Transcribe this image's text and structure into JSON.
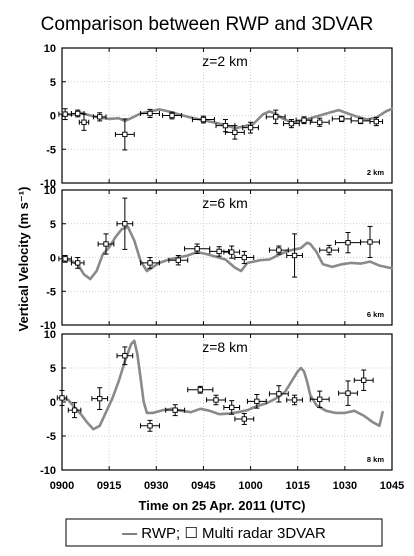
{
  "chart_data": {
    "type": "line",
    "title": "Comparison between RWP and 3DVAR",
    "xlabel": "Time on 25 Apr. 2011 (UTC)",
    "ylabel": "Vertical Velocity (m s⁻¹)",
    "xlim": [
      0,
      105
    ],
    "ylim": [
      -10,
      10
    ],
    "x_ticks": [
      0,
      15,
      30,
      45,
      60,
      75,
      90,
      105
    ],
    "x_tick_labels": [
      "0900",
      "0915",
      "0930",
      "0945",
      "1000",
      "1015",
      "1030",
      "1045"
    ],
    "y_ticks": [
      -10,
      -5,
      0,
      5,
      10
    ],
    "y_tick_labels": [
      "-10",
      "-5",
      "0",
      "5",
      "10"
    ],
    "legend_text": "— RWP; ☐ Multi radar 3DVAR",
    "legend_placement": "bottom",
    "colors": {
      "rwp_line": "#8a8a8a",
      "radar_marker": "#000000",
      "frame": "#000000",
      "grid": "#c0c0c0"
    },
    "panels": [
      {
        "label": "z=2 km",
        "corner_label": "2 km",
        "rwp": [
          [
            0,
            0.3
          ],
          [
            3,
            0.1
          ],
          [
            6,
            0.4
          ],
          [
            9,
            0.0
          ],
          [
            12,
            -0.3
          ],
          [
            15,
            -0.5
          ],
          [
            18,
            -0.4
          ],
          [
            20,
            -0.8
          ],
          [
            22,
            -0.4
          ],
          [
            25,
            0.3
          ],
          [
            28,
            0.6
          ],
          [
            31,
            0.9
          ],
          [
            34,
            0.6
          ],
          [
            37,
            0.2
          ],
          [
            40,
            -0.2
          ],
          [
            43,
            -0.5
          ],
          [
            46,
            -0.8
          ],
          [
            49,
            -1.1
          ],
          [
            52,
            -1.4
          ],
          [
            55,
            -1.9
          ],
          [
            58,
            -1.6
          ],
          [
            61,
            -1.2
          ],
          [
            64,
            0.2
          ],
          [
            66,
            0.6
          ],
          [
            68,
            0.3
          ],
          [
            70,
            -0.4
          ],
          [
            73,
            -1.0
          ],
          [
            76,
            -0.8
          ],
          [
            79,
            -0.4
          ],
          [
            82,
            0.0
          ],
          [
            85,
            0.4
          ],
          [
            88,
            0.8
          ],
          [
            91,
            0.3
          ],
          [
            94,
            -0.2
          ],
          [
            97,
            -0.6
          ],
          [
            100,
            -0.3
          ],
          [
            103,
            0.6
          ],
          [
            105,
            1.0
          ]
        ],
        "radar": [
          {
            "x": 1,
            "y": 0.2,
            "xerr": 2,
            "yerr": 0.8
          },
          {
            "x": 5,
            "y": 0.3,
            "xerr": 2,
            "yerr": 0.5
          },
          {
            "x": 7,
            "y": -1.0,
            "xerr": 1.5,
            "yerr": 1.2
          },
          {
            "x": 12,
            "y": -0.2,
            "xerr": 2,
            "yerr": 0.6
          },
          {
            "x": 20,
            "y": -2.8,
            "xerr": 3,
            "yerr": 2.3
          },
          {
            "x": 28,
            "y": 0.3,
            "xerr": 3,
            "yerr": 0.6
          },
          {
            "x": 35,
            "y": 0.0,
            "xerr": 3,
            "yerr": 0.5
          },
          {
            "x": 45,
            "y": -0.6,
            "xerr": 3.5,
            "yerr": 0.5
          },
          {
            "x": 52,
            "y": -1.5,
            "xerr": 3,
            "yerr": 0.9
          },
          {
            "x": 55,
            "y": -2.5,
            "xerr": 3,
            "yerr": 1.0
          },
          {
            "x": 60,
            "y": -1.8,
            "xerr": 2.5,
            "yerr": 0.8
          },
          {
            "x": 68,
            "y": -0.2,
            "xerr": 3,
            "yerr": 1.0
          },
          {
            "x": 73,
            "y": -1.2,
            "xerr": 2.5,
            "yerr": 0.6
          },
          {
            "x": 77,
            "y": -0.7,
            "xerr": 2.5,
            "yerr": 0.5
          },
          {
            "x": 82,
            "y": -1.0,
            "xerr": 3,
            "yerr": 0.6
          },
          {
            "x": 89,
            "y": -0.5,
            "xerr": 3,
            "yerr": 0.4
          },
          {
            "x": 95,
            "y": -0.8,
            "xerr": 3,
            "yerr": 0.4
          },
          {
            "x": 100,
            "y": -0.9,
            "xerr": 2,
            "yerr": 0.6
          }
        ]
      },
      {
        "label": "z=6 km",
        "corner_label": "6 km",
        "rwp": [
          [
            0,
            -0.2
          ],
          [
            3,
            -0.5
          ],
          [
            5,
            -1.0
          ],
          [
            7,
            -2.5
          ],
          [
            9,
            -3.2
          ],
          [
            11,
            -2.0
          ],
          [
            13,
            0.5
          ],
          [
            15,
            1.5
          ],
          [
            17,
            3.0
          ],
          [
            19,
            4.2
          ],
          [
            21,
            4.5
          ],
          [
            23,
            2.5
          ],
          [
            25,
            -0.5
          ],
          [
            27,
            -2.0
          ],
          [
            29,
            -1.4
          ],
          [
            31,
            -0.8
          ],
          [
            34,
            -0.3
          ],
          [
            37,
            0.0
          ],
          [
            40,
            0.3
          ],
          [
            43,
            0.8
          ],
          [
            46,
            0.5
          ],
          [
            49,
            0.1
          ],
          [
            52,
            -0.3
          ],
          [
            55,
            -1.5
          ],
          [
            57,
            -2.0
          ],
          [
            59,
            -0.8
          ],
          [
            61,
            -0.6
          ],
          [
            63,
            -0.4
          ],
          [
            66,
            -0.3
          ],
          [
            69,
            0.4
          ],
          [
            72,
            1.0
          ],
          [
            74,
            1.2
          ],
          [
            76,
            1.4
          ],
          [
            78,
            2.2
          ],
          [
            79,
            2.0
          ],
          [
            81,
            0.8
          ],
          [
            83,
            -1.0
          ],
          [
            86,
            -1.4
          ],
          [
            89,
            -1.0
          ],
          [
            92,
            -0.8
          ],
          [
            95,
            -0.9
          ],
          [
            98,
            -0.6
          ],
          [
            101,
            -1.2
          ],
          [
            104,
            -1.5
          ],
          [
            105,
            -1.6
          ]
        ],
        "radar": [
          {
            "x": 1,
            "y": -0.2,
            "xerr": 2,
            "yerr": 0.5
          },
          {
            "x": 5,
            "y": -0.8,
            "xerr": 2,
            "yerr": 0.8
          },
          {
            "x": 14,
            "y": 2.0,
            "xerr": 2.5,
            "yerr": 1.5
          },
          {
            "x": 20,
            "y": 5.0,
            "xerr": 2.5,
            "yerr": 3.8
          },
          {
            "x": 28,
            "y": -0.8,
            "xerr": 3,
            "yerr": 0.8
          },
          {
            "x": 37,
            "y": -0.4,
            "xerr": 3,
            "yerr": 0.7
          },
          {
            "x": 43,
            "y": 1.3,
            "xerr": 4,
            "yerr": 0.7
          },
          {
            "x": 50,
            "y": 0.9,
            "xerr": 3,
            "yerr": 0.7
          },
          {
            "x": 54,
            "y": 0.8,
            "xerr": 2.5,
            "yerr": 0.9
          },
          {
            "x": 58,
            "y": 0.0,
            "xerr": 3,
            "yerr": 0.9
          },
          {
            "x": 69,
            "y": 1.1,
            "xerr": 3,
            "yerr": 0.6
          },
          {
            "x": 74,
            "y": 0.3,
            "xerr": 2.5,
            "yerr": 3.2
          },
          {
            "x": 85,
            "y": 1.1,
            "xerr": 3,
            "yerr": 0.7
          },
          {
            "x": 91,
            "y": 2.2,
            "xerr": 4,
            "yerr": 1.5
          },
          {
            "x": 98,
            "y": 2.3,
            "xerr": 3,
            "yerr": 2.3
          }
        ]
      },
      {
        "label": "z=8 km",
        "corner_label": "8 km",
        "rwp": [
          [
            0,
            0.6
          ],
          [
            2,
            0.3
          ],
          [
            4,
            -0.8
          ],
          [
            6,
            -1.8
          ],
          [
            8,
            -3.0
          ],
          [
            10,
            -4.0
          ],
          [
            12,
            -3.5
          ],
          [
            14,
            -1.5
          ],
          [
            16,
            0.5
          ],
          [
            18,
            3.0
          ],
          [
            20,
            6.0
          ],
          [
            22,
            8.5
          ],
          [
            23,
            9.0
          ],
          [
            24,
            7.0
          ],
          [
            25,
            3.5
          ],
          [
            26,
            0.0
          ],
          [
            27,
            -1.6
          ],
          [
            29,
            -1.6
          ],
          [
            32,
            -1.2
          ],
          [
            35,
            -1.0
          ],
          [
            38,
            -1.3
          ],
          [
            41,
            -1.5
          ],
          [
            44,
            -1.0
          ],
          [
            47,
            -1.3
          ],
          [
            50,
            -1.8
          ],
          [
            53,
            -1.7
          ],
          [
            56,
            -1.5
          ],
          [
            59,
            -1.2
          ],
          [
            62,
            -0.6
          ],
          [
            65,
            -0.2
          ],
          [
            68,
            0.5
          ],
          [
            71,
            1.5
          ],
          [
            73,
            3.0
          ],
          [
            75,
            4.5
          ],
          [
            76,
            5.0
          ],
          [
            77,
            4.5
          ],
          [
            78,
            3.0
          ],
          [
            79,
            1.0
          ],
          [
            81,
            -0.5
          ],
          [
            84,
            -1.3
          ],
          [
            87,
            -1.6
          ],
          [
            90,
            -1.6
          ],
          [
            93,
            -1.3
          ],
          [
            96,
            -2.0
          ],
          [
            99,
            -3.0
          ],
          [
            101,
            -3.5
          ],
          [
            102,
            -1.5
          ]
        ],
        "radar": [
          {
            "x": 0,
            "y": 0.6,
            "xerr": 1.5,
            "yerr": 1.1
          },
          {
            "x": 4,
            "y": -1.2,
            "xerr": 2,
            "yerr": 1.1
          },
          {
            "x": 12,
            "y": 0.5,
            "xerr": 2.5,
            "yerr": 1.6
          },
          {
            "x": 20,
            "y": 6.8,
            "xerr": 2.5,
            "yerr": 1.3
          },
          {
            "x": 28,
            "y": -3.5,
            "xerr": 3,
            "yerr": 0.8
          },
          {
            "x": 36,
            "y": -1.2,
            "xerr": 3,
            "yerr": 0.8
          },
          {
            "x": 44,
            "y": 1.8,
            "xerr": 4,
            "yerr": 0.5
          },
          {
            "x": 49,
            "y": 0.3,
            "xerr": 3,
            "yerr": 0.7
          },
          {
            "x": 54,
            "y": -0.8,
            "xerr": 2.5,
            "yerr": 1.0
          },
          {
            "x": 58,
            "y": -2.5,
            "xerr": 3,
            "yerr": 0.8
          },
          {
            "x": 62,
            "y": 0.1,
            "xerr": 3,
            "yerr": 1.0
          },
          {
            "x": 69,
            "y": 1.2,
            "xerr": 3,
            "yerr": 1.2
          },
          {
            "x": 74,
            "y": 0.3,
            "xerr": 2.5,
            "yerr": 0.7
          },
          {
            "x": 82,
            "y": 0.4,
            "xerr": 3,
            "yerr": 1.2
          },
          {
            "x": 91,
            "y": 1.3,
            "xerr": 3,
            "yerr": 1.8
          },
          {
            "x": 96,
            "y": 3.2,
            "xerr": 3,
            "yerr": 1.5
          }
        ]
      }
    ]
  }
}
